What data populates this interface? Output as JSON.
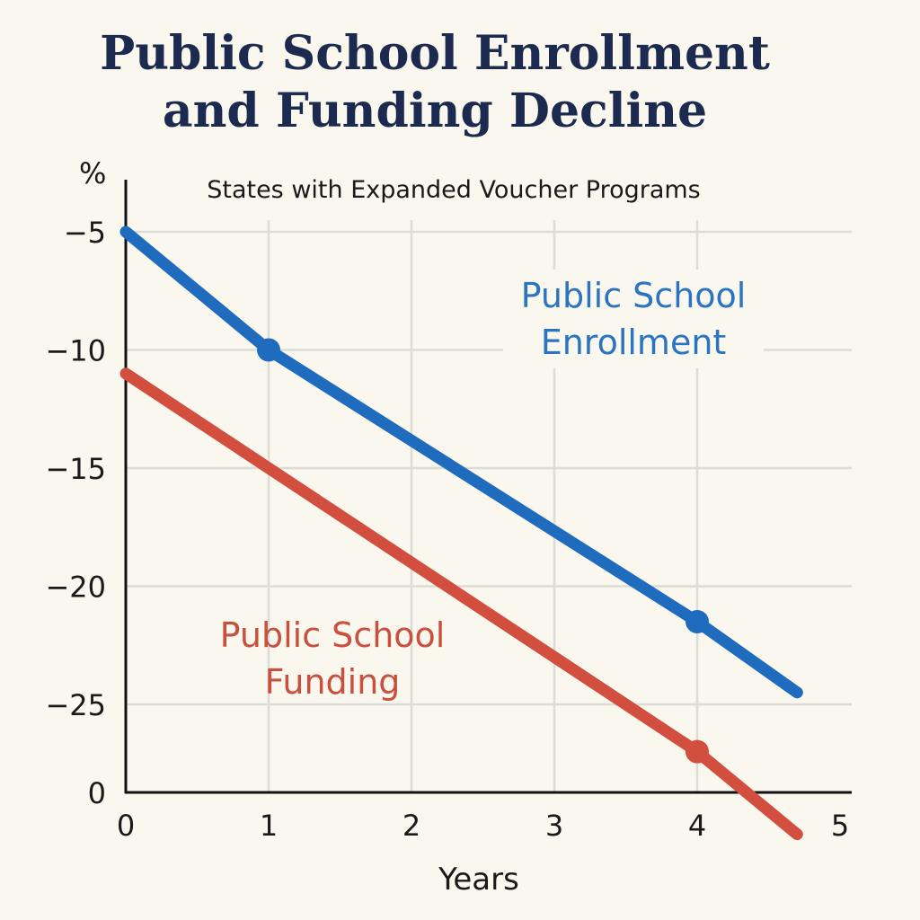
{
  "chart_data": {
    "type": "line",
    "title": [
      "Public School Enrollment",
      "and Funding Decline"
    ],
    "subtitle": "States with Expanded Voucher Programs",
    "xlabel": "Years",
    "ylabel": "%",
    "xlim": [
      0,
      5
    ],
    "ylim": [
      0,
      -5
    ],
    "x_ticks": [
      0,
      1,
      2,
      3,
      4,
      5
    ],
    "y_ticks": [
      {
        "value": -5,
        "label": "−5"
      },
      {
        "value": -10,
        "label": "−10"
      },
      {
        "value": -15,
        "label": "−15"
      },
      {
        "value": -20,
        "label": "−20"
      },
      {
        "value": -25,
        "label": "−25"
      },
      {
        "value": 0,
        "label": "0"
      }
    ],
    "grid": true,
    "series": [
      {
        "name": "Public School Enrollment",
        "label_lines": [
          "Public School",
          "Enrollment"
        ],
        "color": "#1f6bbd",
        "label_color": "#2a74c2",
        "x": [
          0,
          1,
          4,
          4.7
        ],
        "y": [
          -5,
          -10,
          -21.5,
          -24.5
        ],
        "markers": [
          1,
          2
        ]
      },
      {
        "name": "Public School Funding",
        "label_lines": [
          "Public School",
          "Funding"
        ],
        "color": "#d24e3f",
        "label_color": "#c9503f",
        "x": [
          0,
          4,
          4.7
        ],
        "y": [
          -11,
          -27,
          -30.5
        ],
        "markers": [
          1
        ]
      }
    ]
  }
}
